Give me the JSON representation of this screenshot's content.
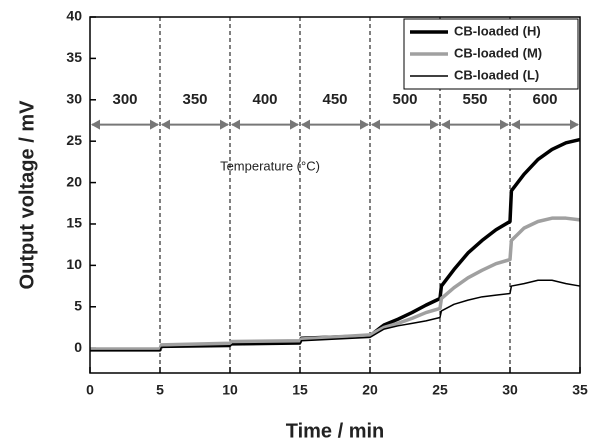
{
  "chart_data": {
    "type": "line",
    "x_label": "Time / min",
    "y_label": "Output voltage / mV",
    "annotation": "Temperature (°C)",
    "temperature_bounds": [
      0,
      5,
      10,
      15,
      20,
      25,
      30,
      35
    ],
    "temperature_labels": [
      "300",
      "350",
      "400",
      "450",
      "500",
      "550",
      "600"
    ],
    "temperature_arrow_y": 27,
    "temperature_label_y": 30,
    "x": [
      0,
      5,
      5.1,
      10,
      10.1,
      15,
      15.1,
      20,
      21,
      22,
      23,
      24,
      25,
      25.1,
      26,
      27,
      28,
      29,
      30,
      30.1,
      31,
      32,
      33,
      34,
      35
    ],
    "series": [
      {
        "name": "CB-loaded (H)",
        "color": "#000000",
        "width": 3.5,
        "values": [
          -0.2,
          -0.2,
          0.3,
          0.4,
          0.6,
          0.7,
          1.2,
          1.5,
          2.8,
          3.5,
          4.3,
          5.2,
          6.0,
          7.5,
          9.5,
          11.5,
          13,
          14.3,
          15.3,
          19,
          21,
          22.8,
          24,
          24.8,
          25.2
        ]
      },
      {
        "name": "CB-loaded (M)",
        "color": "#a0a0a0",
        "width": 3.5,
        "values": [
          -0.1,
          -0.1,
          0.4,
          0.6,
          0.8,
          0.9,
          1.1,
          1.6,
          2.5,
          3.0,
          3.6,
          4.3,
          4.8,
          6.0,
          7.3,
          8.5,
          9.4,
          10.2,
          10.7,
          13,
          14.5,
          15.3,
          15.7,
          15.7,
          15.5
        ]
      },
      {
        "name": "CB-loaded (L)",
        "color": "#000000",
        "width": 1.5,
        "values": [
          -0.3,
          -0.3,
          0.1,
          0.2,
          0.4,
          0.5,
          0.9,
          1.3,
          2.3,
          2.7,
          3.0,
          3.3,
          3.7,
          4.5,
          5.3,
          5.8,
          6.2,
          6.4,
          6.6,
          7.5,
          7.8,
          8.2,
          8.2,
          7.8,
          7.5
        ]
      }
    ],
    "xlim": [
      0,
      35
    ],
    "xticks": [
      0,
      5,
      10,
      15,
      20,
      25,
      30,
      35
    ],
    "ylim": [
      -3,
      40
    ],
    "yticks": [
      0,
      5,
      10,
      15,
      20,
      25,
      30,
      35,
      40
    ],
    "legend": "upper right"
  }
}
